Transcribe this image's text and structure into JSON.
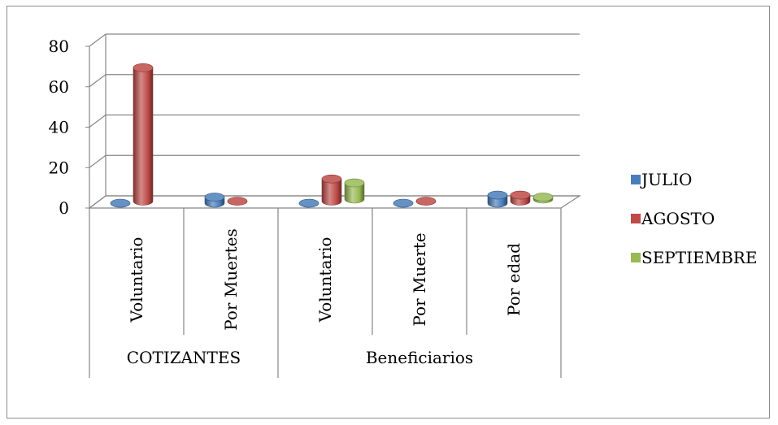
{
  "chart_data": {
    "type": "bar",
    "style": "3d-cylinder",
    "groups": [
      {
        "label": "COTIZANTES",
        "categories": [
          "Voluntario",
          "Por Muertes"
        ]
      },
      {
        "label": "Beneficiarios",
        "categories": [
          "Voluntario",
          "Por Muerte",
          "Por edad"
        ]
      }
    ],
    "categories": [
      "Voluntario",
      "Por Muertes",
      "Voluntario",
      "Por Muerte",
      "Por edad"
    ],
    "series": [
      {
        "name": "JULIO",
        "color": "#4a7ebb",
        "values": [
          0,
          3,
          0,
          0,
          4
        ]
      },
      {
        "name": "AGOSTO",
        "color": "#be4b48",
        "values": [
          66,
          0,
          11,
          0,
          3
        ]
      },
      {
        "name": "SEPTIEMBRE",
        "color": "#98b954",
        "values": [
          null,
          null,
          8,
          null,
          1
        ]
      }
    ],
    "ylim": [
      0,
      80
    ],
    "yticks": [
      0,
      20,
      40,
      60,
      80
    ],
    "grid": true,
    "legend": "right"
  }
}
